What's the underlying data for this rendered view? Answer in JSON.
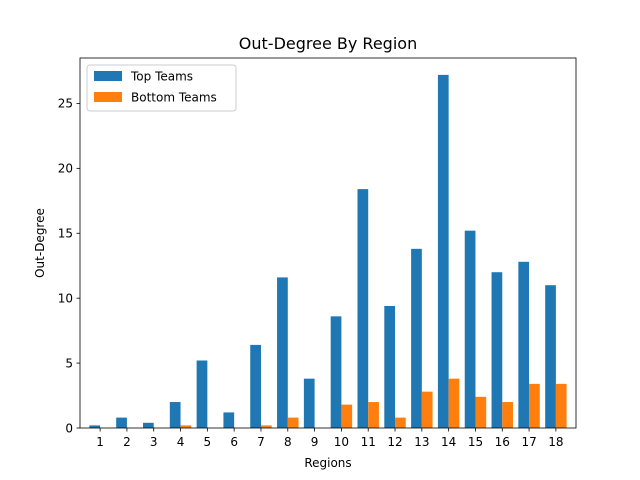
{
  "chart_data": {
    "type": "bar",
    "title": "Out-Degree By Region",
    "xlabel": "Regions",
    "ylabel": "Out-Degree",
    "categories": [
      "1",
      "2",
      "3",
      "4",
      "5",
      "6",
      "7",
      "8",
      "9",
      "10",
      "11",
      "12",
      "13",
      "14",
      "15",
      "16",
      "17",
      "18"
    ],
    "series": [
      {
        "name": "Top Teams",
        "color": "#1f77b4",
        "values": [
          0.2,
          0.8,
          0.4,
          2.0,
          5.2,
          1.2,
          6.4,
          11.6,
          3.8,
          8.6,
          18.4,
          9.4,
          13.8,
          27.2,
          15.2,
          12.0,
          12.8,
          11.0
        ]
      },
      {
        "name": "Bottom Teams",
        "color": "#ff7f0e",
        "values": [
          0.0,
          0.0,
          0.0,
          0.2,
          0.0,
          0.0,
          0.2,
          0.8,
          0.0,
          1.8,
          2.0,
          0.8,
          2.8,
          3.8,
          2.4,
          2.0,
          3.4,
          3.4
        ]
      }
    ],
    "ylim": [
      0,
      28.5
    ],
    "yticks": [
      0,
      5,
      10,
      15,
      20,
      25
    ],
    "legend": "top-left",
    "grid": false
  }
}
